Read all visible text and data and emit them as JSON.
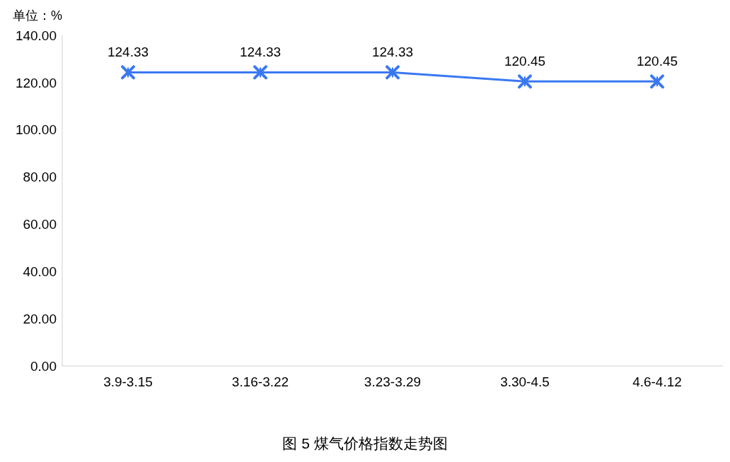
{
  "chart_data": {
    "type": "line",
    "title": "图 5  煤气价格指数走势图",
    "ylabel": "单位：%",
    "categories": [
      "3.9-3.15",
      "3.16-3.22",
      "3.23-3.29",
      "3.30-4.5",
      "4.6-4.12"
    ],
    "series": [
      {
        "color": "#3a78f2",
        "values": [
          124.33,
          124.33,
          124.33,
          120.45,
          120.45
        ]
      }
    ],
    "ylim": [
      0,
      140
    ],
    "yticks": [
      {
        "value": 0,
        "label": "0.00"
      },
      {
        "value": 20,
        "label": "20.00"
      },
      {
        "value": 40,
        "label": "40.00"
      },
      {
        "value": 60,
        "label": "60.00"
      },
      {
        "value": 80,
        "label": "80.00"
      },
      {
        "value": 100,
        "label": "100.00"
      },
      {
        "value": 120,
        "label": "120.00"
      },
      {
        "value": 140,
        "label": "140.00"
      }
    ],
    "grid": false,
    "legend": false,
    "marker": "cross",
    "line_style": "solid",
    "data_labels": true
  }
}
